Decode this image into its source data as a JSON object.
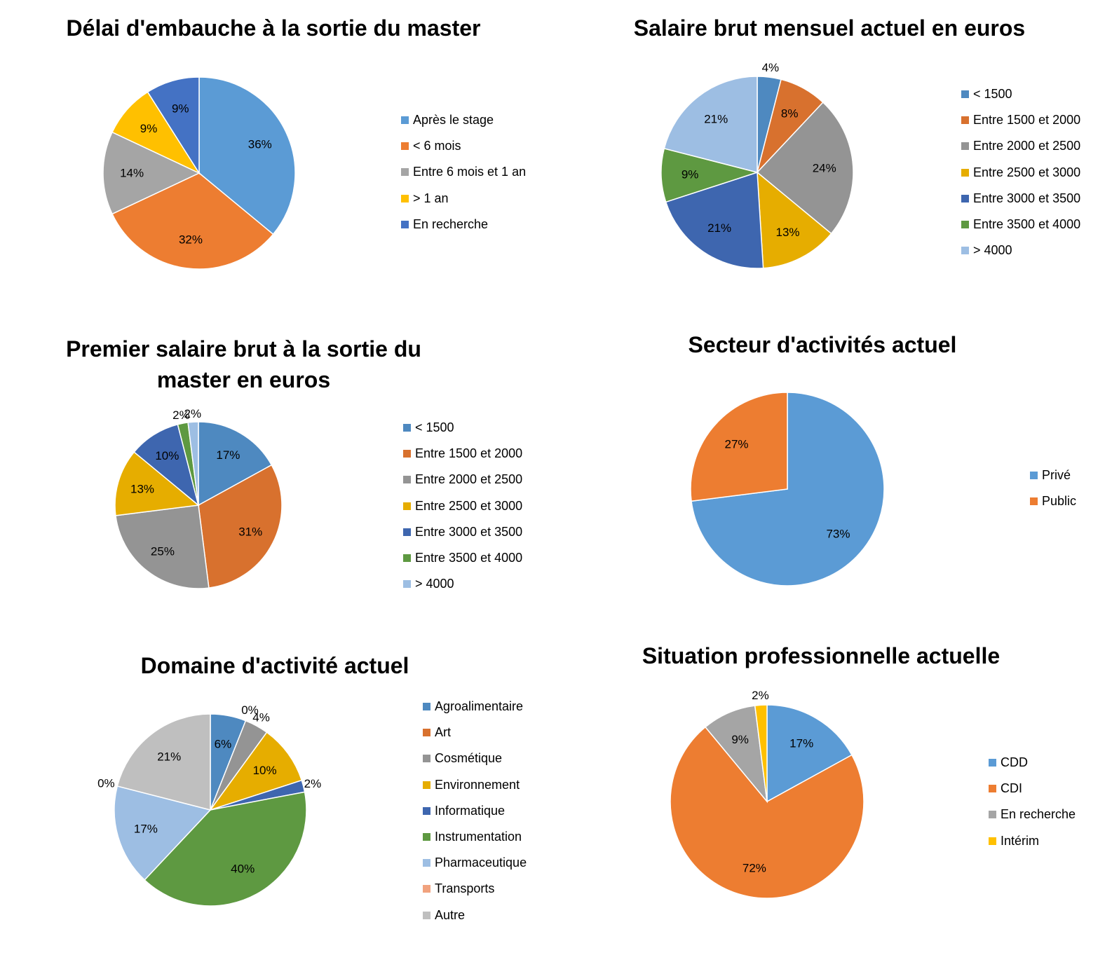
{
  "chart_data": [
    {
      "type": "pie",
      "title": "Délai d'embauche à la sortie du master",
      "series": [
        {
          "categories": [
            "Après le stage",
            "< 6 mois",
            "Entre 6 mois et 1 an",
            "> 1 an",
            "En recherche"
          ],
          "values": [
            36,
            32,
            14,
            9,
            9
          ],
          "labels": [
            "36%",
            "32%",
            "14%",
            "9%",
            "9%"
          ],
          "colors": [
            "#5B9BD5",
            "#ED7D31",
            "#A5A5A5",
            "#FFC000",
            "#4472C4"
          ]
        }
      ]
    },
    {
      "type": "pie",
      "title": "Salaire brut mensuel actuel en euros",
      "series": [
        {
          "categories": [
            "< 1500",
            "Entre 1500 et 2000",
            "Entre 2000 et 2500",
            "Entre 2500 et 3000",
            "Entre 3000 et 3500",
            "Entre 3500 et 4000",
            "> 4000"
          ],
          "values": [
            4,
            8,
            24,
            13,
            21,
            9,
            21
          ],
          "labels": [
            "4%",
            "8%",
            "24%",
            "13%",
            "21%",
            "9%",
            "21%"
          ],
          "colors": [
            "#4E89C0",
            "#D8712E",
            "#949494",
            "#E6AD00",
            "#3E66AF",
            "#5E9941",
            "#9DBEE3"
          ]
        }
      ]
    },
    {
      "type": "pie",
      "title": "Premier salaire brut à la sortie du master en euros",
      "series": [
        {
          "categories": [
            "< 1500",
            "Entre 1500 et 2000",
            "Entre 2000 et 2500",
            "Entre 2500 et 3000",
            "Entre 3000 et 3500",
            "Entre 3500 et 4000",
            "> 4000"
          ],
          "values": [
            17,
            31,
            25,
            13,
            10,
            2,
            2
          ],
          "labels": [
            "17%",
            "31%",
            "25%",
            "13%",
            "10%",
            "2%",
            "2%"
          ],
          "colors": [
            "#4E89C0",
            "#D8712E",
            "#949494",
            "#E6AD00",
            "#3E66AF",
            "#5E9941",
            "#9DBEE3"
          ]
        }
      ]
    },
    {
      "type": "pie",
      "title": "Secteur d'activités actuel",
      "series": [
        {
          "categories": [
            "Privé",
            "Public"
          ],
          "values": [
            73,
            27
          ],
          "labels": [
            "73%",
            "27%"
          ],
          "colors": [
            "#5B9BD5",
            "#ED7D31"
          ]
        }
      ]
    },
    {
      "type": "pie",
      "title": "Domaine d'activité actuel",
      "series": [
        {
          "categories": [
            "Agroalimentaire",
            "Art",
            "Cosmétique",
            "Environnement",
            "Informatique",
            "Instrumentation",
            "Pharmaceutique",
            "Transports",
            "Autre"
          ],
          "values": [
            6,
            0,
            4,
            10,
            2,
            40,
            17,
            0,
            21
          ],
          "labels": [
            "6%",
            "0%",
            "4%",
            "10%",
            "2%",
            "40%",
            "17%",
            "0%",
            "21%"
          ],
          "colors": [
            "#4E89C0",
            "#D8712E",
            "#949494",
            "#E6AD00",
            "#3E66AF",
            "#5E9941",
            "#9DBEE3",
            "#F1A27E",
            "#BFBFBF"
          ]
        }
      ]
    },
    {
      "type": "pie",
      "title": "Situation professionnelle actuelle",
      "series": [
        {
          "categories": [
            "CDD",
            "CDI",
            "En recherche",
            "Intérim"
          ],
          "values": [
            17,
            72,
            9,
            2
          ],
          "labels": [
            "17%",
            "72%",
            "9%",
            "2%"
          ],
          "colors": [
            "#5B9BD5",
            "#ED7D31",
            "#A5A5A5",
            "#FFC000"
          ]
        }
      ]
    }
  ]
}
